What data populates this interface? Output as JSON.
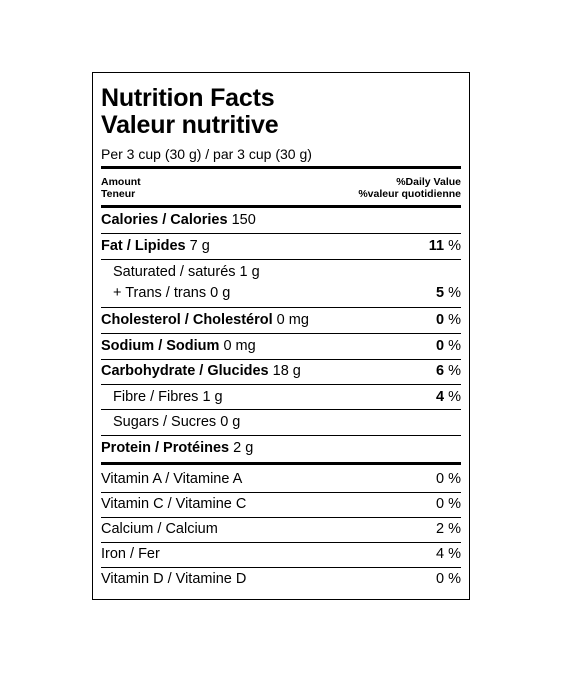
{
  "title_en": "Nutrition Facts",
  "title_fr": "Valeur nutritive",
  "serving": "Per 3 cup (30 g) / par 3 cup (30 g)",
  "header": {
    "amount_en": "Amount",
    "amount_fr": "Teneur",
    "dv_en": "%Daily Value",
    "dv_fr": "%valeur quotidienne"
  },
  "calories": {
    "label": "Calories / Calories",
    "value": "150"
  },
  "fat": {
    "label": "Fat / Lipides",
    "value": "7 g",
    "pct": "11",
    "unit": "%"
  },
  "saturated": {
    "label": "Saturated / saturés",
    "value": "1 g"
  },
  "trans": {
    "label": "+ Trans / trans",
    "value": "0 g",
    "pct": "5",
    "unit": "%"
  },
  "cholesterol": {
    "label": "Cholesterol / Cholestérol",
    "value": "0 mg",
    "pct": "0",
    "unit": "%"
  },
  "sodium": {
    "label": "Sodium / Sodium",
    "value": "0 mg",
    "pct": "0",
    "unit": "%"
  },
  "carbohydrate": {
    "label": "Carbohydrate / Glucides",
    "value": "18 g",
    "pct": "6",
    "unit": "%"
  },
  "fibre": {
    "label": "Fibre / Fibres",
    "value": "1 g",
    "pct": "4",
    "unit": "%"
  },
  "sugars": {
    "label": "Sugars / Sucres",
    "value": "0 g"
  },
  "protein": {
    "label": "Protein / Protéines",
    "value": "2 g"
  },
  "vitamins": [
    {
      "label": "Vitamin A / Vitamine A",
      "pct": "0 %"
    },
    {
      "label": "Vitamin C / Vitamine C",
      "pct": "0 %"
    },
    {
      "label": "Calcium / Calcium",
      "pct": "2 %"
    },
    {
      "label": "Iron / Fer",
      "pct": "4 %"
    },
    {
      "label": "Vitamin D / Vitamine D",
      "pct": "0 %"
    }
  ]
}
